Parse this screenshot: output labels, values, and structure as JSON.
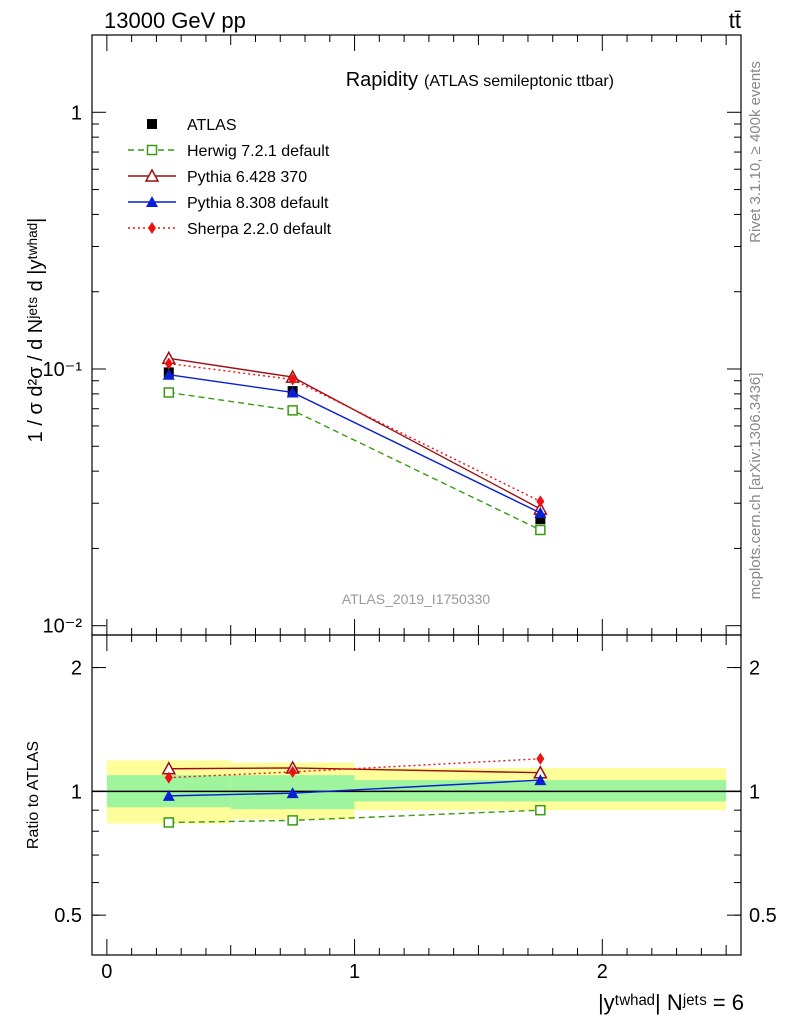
{
  "header": {
    "left": "13000 GeV pp",
    "right": "tt̄"
  },
  "side_labels": {
    "rivet": "Rivet 3.1.10, ≥ 400k events",
    "mcplots": "mcplots.cern.ch [arXiv:1306.3436]"
  },
  "watermark": "ATLAS_2019_I1750330",
  "colors": {
    "atlas": "#000000",
    "herwig": "#3a9a10",
    "pythia6": "#9b0f14",
    "pythia8": "#0a1fd6",
    "sherpa": "#ee1111",
    "band_inner": "#9ef59e",
    "band_outer": "#fdfd9a"
  },
  "chart_data": [
    {
      "id": "main",
      "type": "line",
      "title": "Rapidity",
      "subtitle": "(ATLAS semileptonic ttbar)",
      "ylabel": "1 / σ d²σ / d Nʲᵉᵗˢ d |yᵗʷʰᵃᵈ|",
      "yscale": "log",
      "ylim": [
        0.0092,
        2.0
      ],
      "xlim": [
        -0.06,
        2.56
      ],
      "ytick_labels": [
        {
          "value": 1,
          "label": "1"
        },
        {
          "value": 0.1,
          "label": "10⁻¹"
        },
        {
          "value": 0.01,
          "label": "10⁻²"
        }
      ],
      "legend_position": "top-left",
      "x": [
        0.25,
        0.75,
        1.75
      ],
      "series": [
        {
          "key": "atlas",
          "name": "ATLAS",
          "values": [
            0.097,
            0.082,
            0.026
          ],
          "marker": "square-filled",
          "line": "none"
        },
        {
          "key": "herwig",
          "name": "Herwig 7.2.1 default",
          "values": [
            0.081,
            0.069,
            0.0236
          ],
          "marker": "square-open",
          "line": "dashed"
        },
        {
          "key": "pythia6",
          "name": "Pythia 6.428 370",
          "values": [
            0.11,
            0.093,
            0.0285
          ],
          "marker": "triangle-open",
          "line": "solid"
        },
        {
          "key": "pythia8",
          "name": "Pythia 8.308 default",
          "values": [
            0.095,
            0.081,
            0.0275
          ],
          "marker": "triangle-filled",
          "line": "solid"
        },
        {
          "key": "sherpa",
          "name": "Sherpa 2.2.0 default",
          "values": [
            0.105,
            0.091,
            0.0305
          ],
          "marker": "diamond-filled",
          "line": "dotted"
        }
      ]
    },
    {
      "id": "ratio",
      "type": "line",
      "ylabel": "Ratio to ATLAS",
      "xlabel": "|yᵗʷʰᵃᵈ| Nʲᵉᵗˢ = 6",
      "yscale": "log",
      "ylim": [
        0.4,
        2.4
      ],
      "xlim": [
        -0.06,
        2.56
      ],
      "ytick_labels": [
        {
          "value": 2,
          "label": "2"
        },
        {
          "value": 1,
          "label": "1"
        },
        {
          "value": 0.5,
          "label": "0.5"
        }
      ],
      "xtick_labels": [
        {
          "value": 0,
          "label": "0"
        },
        {
          "value": 1,
          "label": "1"
        },
        {
          "value": 2,
          "label": "2"
        }
      ],
      "bands": [
        {
          "x_range": [
            0.0,
            0.5
          ],
          "inner": [
            0.915,
            1.095
          ],
          "outer": [
            0.835,
            1.19
          ]
        },
        {
          "x_range": [
            0.5,
            1.0
          ],
          "inner": [
            0.905,
            1.095
          ],
          "outer": [
            0.855,
            1.175
          ]
        },
        {
          "x_range": [
            1.0,
            2.5
          ],
          "inner": [
            0.945,
            1.065
          ],
          "outer": [
            0.9,
            1.14
          ]
        }
      ],
      "x": [
        0.25,
        0.75,
        1.75
      ],
      "series": [
        {
          "key": "herwig",
          "name": "Herwig 7.2.1 default",
          "values": [
            0.84,
            0.85,
            0.9
          ],
          "marker": "square-open",
          "line": "dashed"
        },
        {
          "key": "pythia6",
          "name": "Pythia 6.428 370",
          "values": [
            1.135,
            1.14,
            1.11
          ],
          "marker": "triangle-open",
          "line": "solid"
        },
        {
          "key": "pythia8",
          "name": "Pythia 8.308 default",
          "values": [
            0.975,
            0.99,
            1.065
          ],
          "marker": "triangle-filled",
          "line": "solid"
        },
        {
          "key": "sherpa",
          "name": "Sherpa 2.2.0 default",
          "values": [
            1.08,
            1.115,
            1.2
          ],
          "marker": "diamond-filled",
          "line": "dotted"
        }
      ]
    }
  ]
}
